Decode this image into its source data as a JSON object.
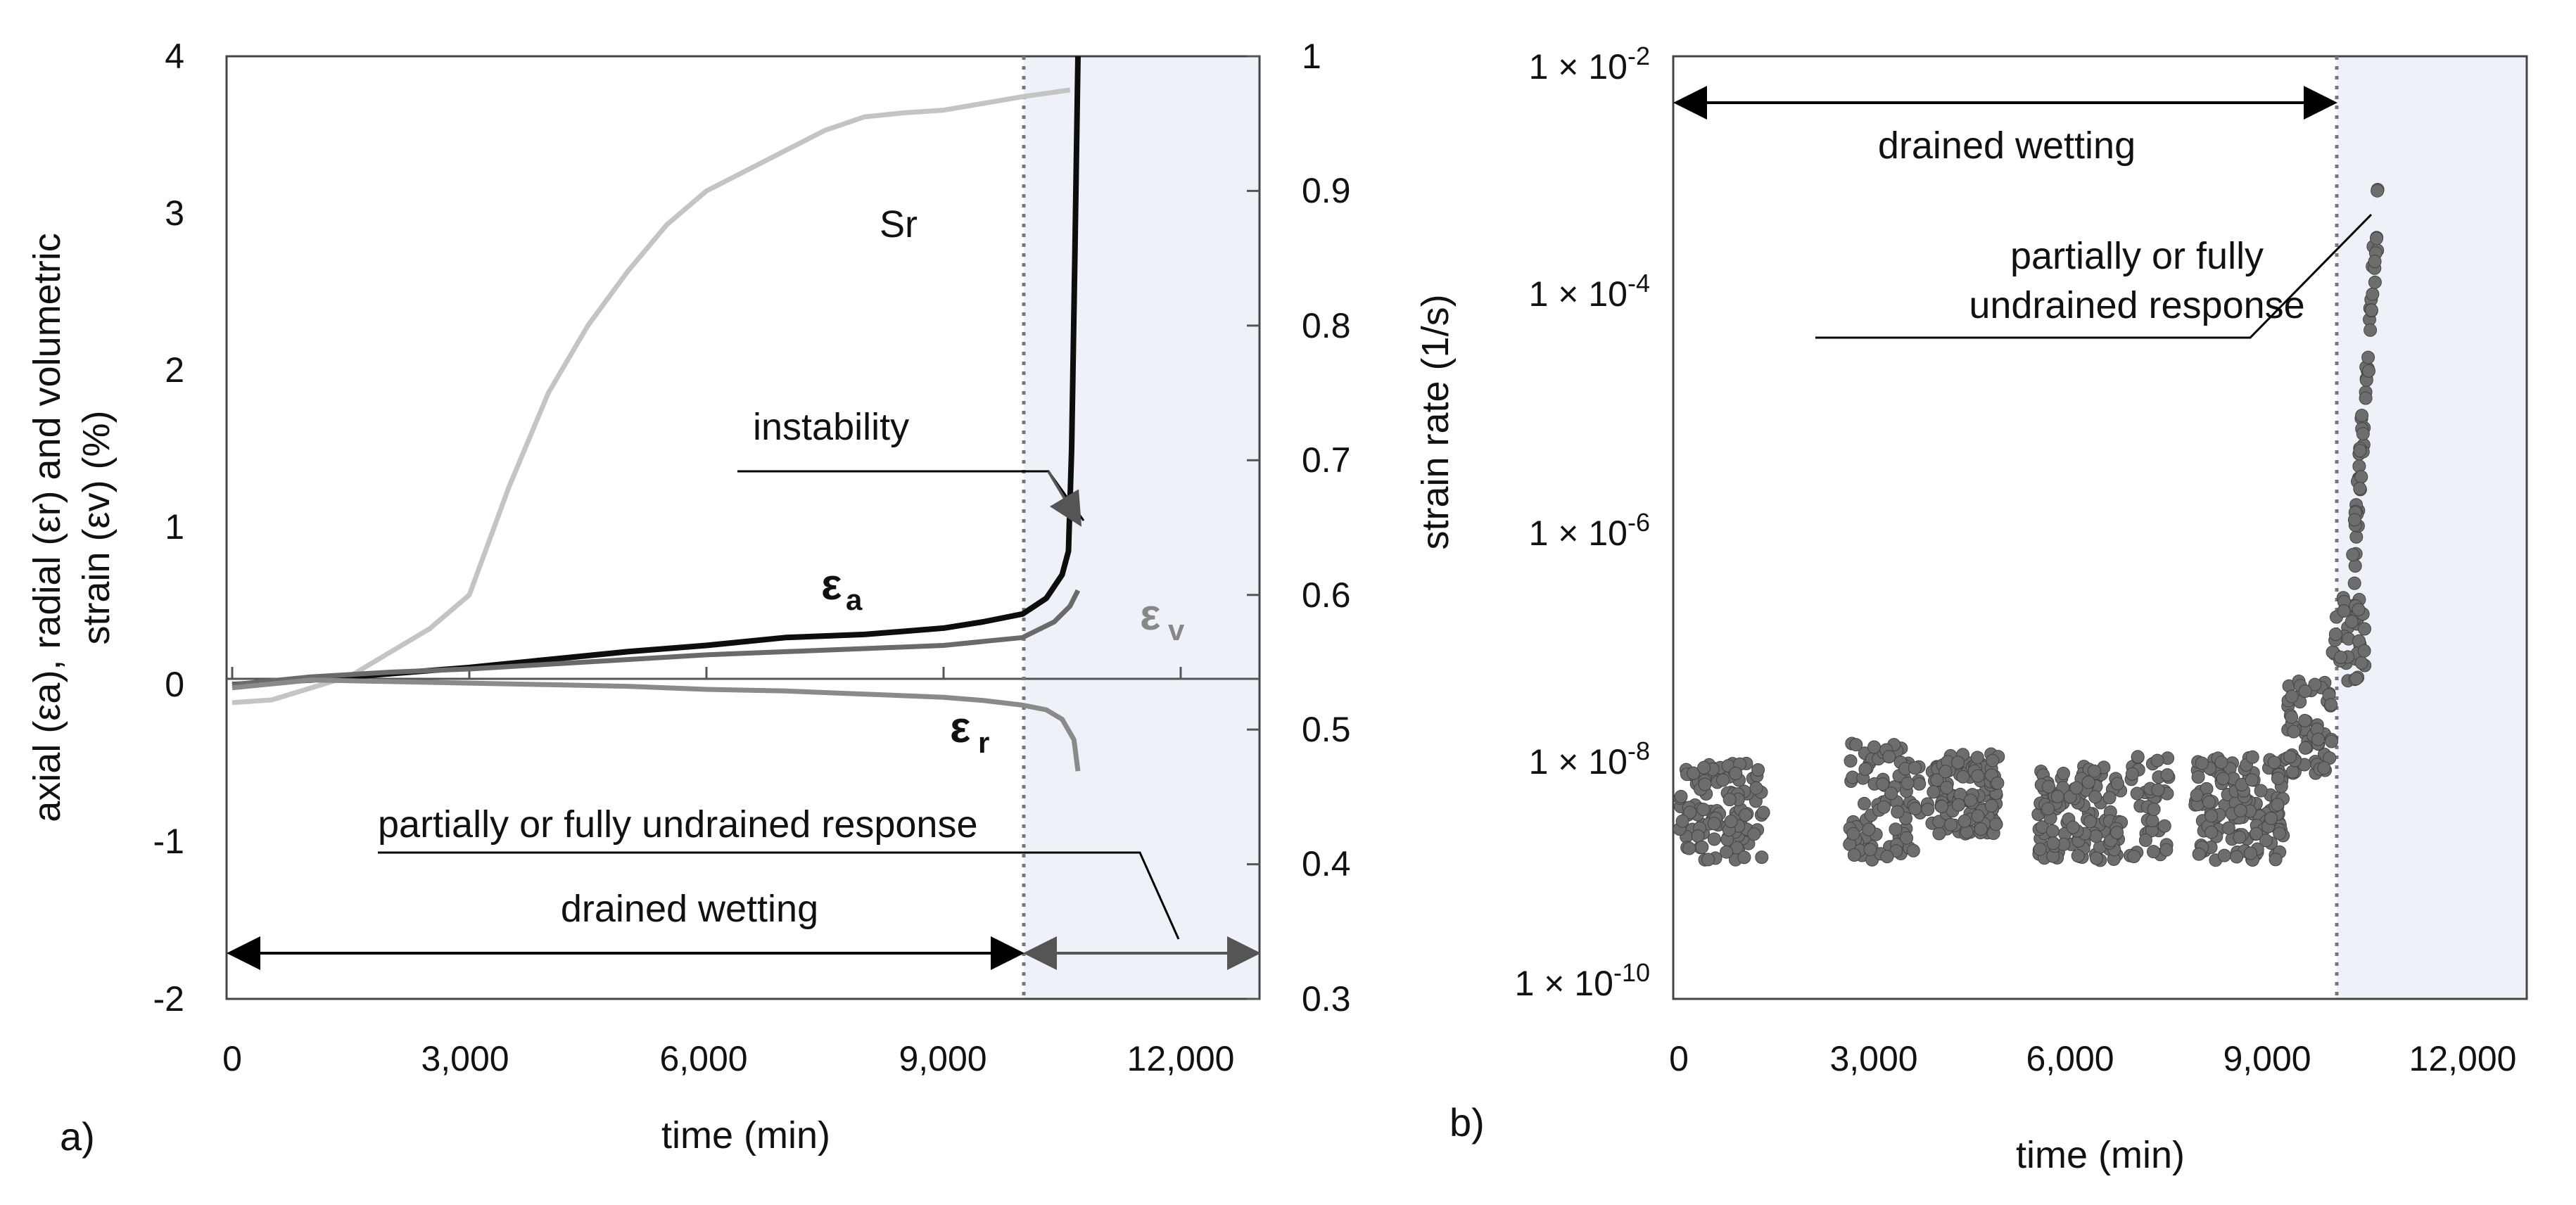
{
  "chart_data": [
    {
      "panel_label": "a)",
      "type": "line",
      "xlabel": "time (min)",
      "xlim": [
        0,
        13000
      ],
      "xticks": [
        0,
        3000,
        6000,
        9000,
        12000
      ],
      "xtick_labels": [
        "0",
        "3,000",
        "6,000",
        "9,000",
        "12,000"
      ],
      "ylabel_left_line1": "axial (εa), radial (εr) and volumetric",
      "ylabel_left_line2": "strain (εv)  (%)",
      "ylim_left": [
        -2,
        4
      ],
      "yticks_left": [
        "-2",
        "-1",
        "0",
        "1",
        "2",
        "3",
        "4"
      ],
      "ylim_right": [
        0.3,
        1
      ],
      "yticks_right": [
        "0.3",
        "0.4",
        "0.5",
        "0.6",
        "0.7",
        "0.8",
        "0.9",
        "1"
      ],
      "undrained_start": 10000,
      "series": [
        {
          "name": "Sr",
          "axis": "right",
          "color": "#c4c4c4",
          "x": [
            0,
            500,
            1500,
            2500,
            3000,
            3500,
            4000,
            4500,
            5000,
            5500,
            6000,
            6500,
            7000,
            7500,
            8000,
            8500,
            9000,
            9500,
            10000,
            10600
          ],
          "y": [
            0.52,
            0.522,
            0.54,
            0.575,
            0.6,
            0.68,
            0.75,
            0.8,
            0.84,
            0.875,
            0.9,
            0.915,
            0.93,
            0.945,
            0.955,
            0.958,
            0.96,
            0.965,
            0.97,
            0.975
          ]
        },
        {
          "name": "εa",
          "axis": "left",
          "color": "#0d0d0d",
          "x": [
            0,
            1000,
            2000,
            3000,
            4000,
            5000,
            6000,
            7000,
            8000,
            9000,
            9500,
            10000,
            10300,
            10500,
            10580,
            10620,
            10660,
            10700
          ],
          "y": [
            0,
            0.03,
            0.07,
            0.11,
            0.16,
            0.21,
            0.25,
            0.3,
            0.32,
            0.36,
            0.4,
            0.45,
            0.55,
            0.7,
            0.85,
            1.5,
            2.7,
            4.0
          ]
        },
        {
          "name": "εv",
          "axis": "left",
          "color": "#6a6a6a",
          "x": [
            0,
            1000,
            2000,
            3000,
            4000,
            5000,
            6000,
            7000,
            8000,
            9000,
            10000,
            10400,
            10600,
            10700
          ],
          "y": [
            0,
            0.05,
            0.08,
            0.1,
            0.13,
            0.16,
            0.19,
            0.21,
            0.23,
            0.25,
            0.3,
            0.4,
            0.5,
            0.6
          ]
        },
        {
          "name": "εr",
          "axis": "left",
          "color": "#8a8a8a",
          "x": [
            0,
            1000,
            2000,
            3000,
            4000,
            5000,
            6000,
            7000,
            8000,
            9000,
            9500,
            10000,
            10300,
            10500,
            10650,
            10700
          ],
          "y": [
            -0.02,
            0.03,
            0.02,
            0.01,
            0.0,
            -0.01,
            -0.03,
            -0.04,
            -0.06,
            -0.08,
            -0.1,
            -0.13,
            -0.16,
            -0.22,
            -0.35,
            -0.55
          ]
        }
      ],
      "series_labels": {
        "sr": "Sr",
        "ea": "ε",
        "ea_sub": "a",
        "ev": "ε",
        "ev_sub": "v",
        "er": "ε",
        "er_sub": "r"
      },
      "annotations": {
        "instability": "instability",
        "partially_undrained": "partially  or fully  undrained  response",
        "drained_wetting": "drained  wetting"
      }
    },
    {
      "panel_label": "b)",
      "type": "scatter",
      "xlabel": "time (min)",
      "xlim": [
        0,
        13000
      ],
      "xticks": [
        0,
        3000,
        6000,
        9000,
        12000
      ],
      "xtick_labels": [
        "0",
        "3,000",
        "6,000",
        "9,000",
        "12,000"
      ],
      "ylabel": "strain rate (1/s)",
      "yscale": "log",
      "ylim": [
        1e-10,
        0.01
      ],
      "ytick_labels": [
        {
          "base": "1 × 10",
          "exp": "-10",
          "value_exp": -10
        },
        {
          "base": "1 × 10",
          "exp": "-8",
          "value_exp": -8
        },
        {
          "base": "1 × 10",
          "exp": "-6",
          "value_exp": -6
        },
        {
          "base": "1 × 10",
          "exp": "-4",
          "value_exp": -4
        },
        {
          "base": "1 × 10",
          "exp": "-2",
          "value_exp": -2
        }
      ],
      "undrained_start": 10000,
      "point_color": "#6d6d6d",
      "clusters": [
        {
          "t0": 0,
          "t1": 1300,
          "rate_min": 1.5e-09,
          "rate_max": 1e-08,
          "count": 120
        },
        {
          "t0": 2600,
          "t1": 3700,
          "rate_min": 1.5e-09,
          "rate_max": 1.5e-08,
          "count": 90
        },
        {
          "t0": 3800,
          "t1": 4900,
          "rate_min": 2.5e-09,
          "rate_max": 1.2e-08,
          "count": 110
        },
        {
          "t0": 5500,
          "t1": 6800,
          "rate_min": 1.5e-09,
          "rate_max": 1e-08,
          "count": 120
        },
        {
          "t0": 6900,
          "t1": 7500,
          "rate_min": 1.5e-09,
          "rate_max": 1.2e-08,
          "count": 40
        },
        {
          "t0": 7900,
          "t1": 9300,
          "rate_min": 1.5e-09,
          "rate_max": 1.2e-08,
          "count": 140
        },
        {
          "t0": 9300,
          "t1": 10000,
          "rate_min": 8e-09,
          "rate_max": 5e-08,
          "count": 60
        },
        {
          "t0": 10000,
          "t1": 10500,
          "rate_min": 5e-08,
          "rate_max": 3e-07,
          "count": 40
        },
        {
          "t0": 10300,
          "t1": 10700,
          "rate_min": 3e-07,
          "rate_max": 0.0005,
          "count": 60
        }
      ],
      "annotations": {
        "drained_wetting": "drained  wetting",
        "undrained_line1": "partially  or fully",
        "undrained_line2": "undrained  response"
      }
    }
  ]
}
